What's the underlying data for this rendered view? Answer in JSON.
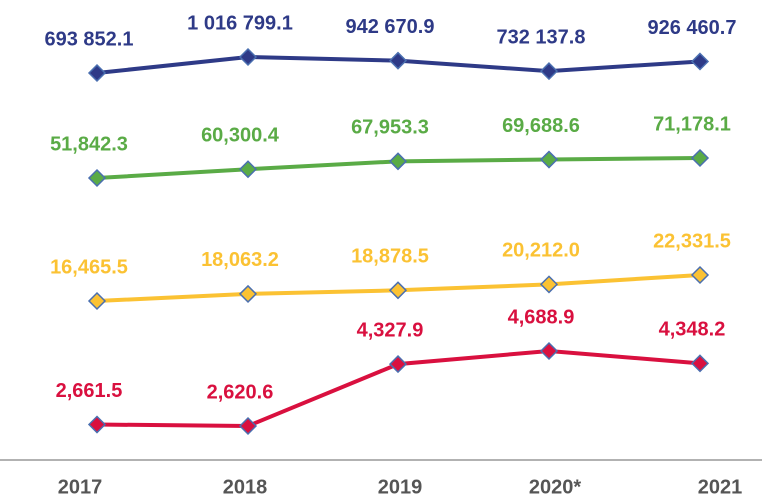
{
  "chart_data": {
    "type": "line",
    "categories": [
      "2017",
      "2018",
      "2019",
      "2020*",
      "2021"
    ],
    "series": [
      {
        "color": "#2e3a87",
        "values": [
          693852.1,
          1016799.1,
          942670.9,
          732137.8,
          926460.7
        ],
        "value_labels": [
          "693 852.1",
          "1 016 799.1",
          "942 670.9",
          "732 137.8",
          "926 460.7"
        ]
      },
      {
        "color": "#5aab46",
        "values": [
          51842.3,
          60300.4,
          67953.3,
          69688.6,
          71178.1
        ],
        "value_labels": [
          "51,842.3",
          "60,300.4",
          "67,953.3",
          "69,688.6",
          "71,178.1"
        ]
      },
      {
        "color": "#fbc233",
        "values": [
          16465.5,
          18063.2,
          18878.5,
          20212.0,
          22331.5
        ],
        "value_labels": [
          "16,465.5",
          "18,063.2",
          "18,878.5",
          "20,212.0",
          "22,331.5"
        ]
      },
      {
        "color": "#d9103f",
        "values": [
          2661.5,
          2620.6,
          4327.9,
          4688.9,
          4348.2
        ],
        "value_labels": [
          "2,661.5",
          "2,620.6",
          "4,327.9",
          "4,688.9",
          "4,348.2"
        ]
      }
    ]
  }
}
